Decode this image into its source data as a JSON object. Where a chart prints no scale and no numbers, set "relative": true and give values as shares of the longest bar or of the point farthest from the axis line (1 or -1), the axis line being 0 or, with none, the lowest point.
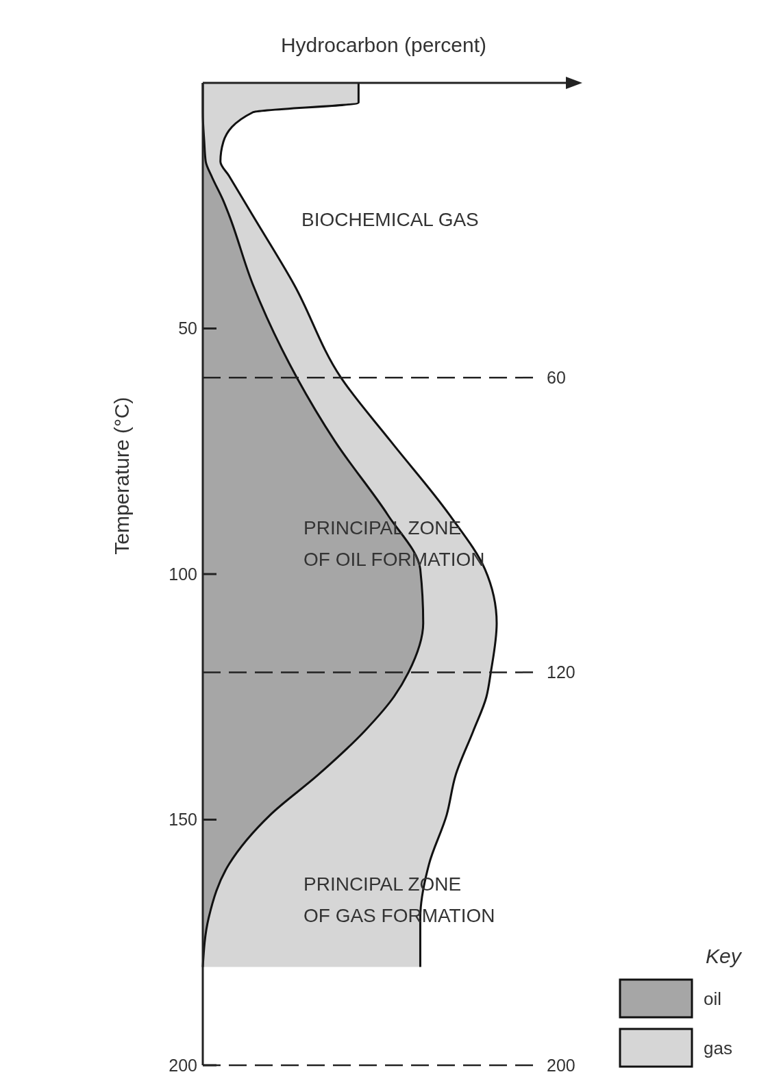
{
  "chart_data": {
    "type": "area",
    "stacked": true,
    "orientation": "horizontal",
    "relative": true,
    "xlabel": "Hydrocarbon (percent)",
    "ylabel": "Temperature (°C)",
    "legend_title": "Key",
    "legend": "bottom right",
    "x": [
      0,
      4,
      6,
      12,
      16,
      19,
      24,
      27,
      41,
      60,
      73,
      88,
      99,
      110,
      120,
      125,
      132,
      141,
      149,
      159,
      170,
      180
    ],
    "series": [
      {
        "name": "oil",
        "color": "#a6a6a6",
        "values": [
          0,
          0,
          0,
          0.005,
          0.01,
          0.03,
          0.07,
          0.09,
          0.17,
          0.32,
          0.45,
          0.63,
          0.74,
          0.75,
          0.7,
          0.65,
          0.55,
          0.39,
          0.23,
          0.09,
          0.02,
          0
        ]
      },
      {
        "name": "gas",
        "color": "#d6d6d6",
        "values": [
          0.53,
          0.53,
          0.17,
          0.065,
          0.05,
          0.06,
          0.07,
          0.08,
          0.14,
          0.15,
          0.19,
          0.21,
          0.22,
          0.25,
          0.28,
          0.315,
          0.37,
          0.47,
          0.6,
          0.68,
          0.72,
          0.74
        ]
      }
    ],
    "ylim": [
      200,
      0
    ],
    "yticks": [
      50,
      100,
      150,
      200
    ],
    "ref_lines": [
      {
        "axis": "y",
        "value": 60,
        "label": "60",
        "line_style": "dashed"
      },
      {
        "axis": "y",
        "value": 120,
        "label": "120",
        "line_style": "dashed"
      },
      {
        "axis": "y",
        "value": 200,
        "label": "200",
        "line_style": "dashed"
      }
    ],
    "annotations": [
      "BIOCHEMICAL GAS",
      "PRINCIPAL ZONE\nOF OIL FORMATION",
      "PRINCIPAL ZONE\nOF GAS FORMATION"
    ]
  }
}
